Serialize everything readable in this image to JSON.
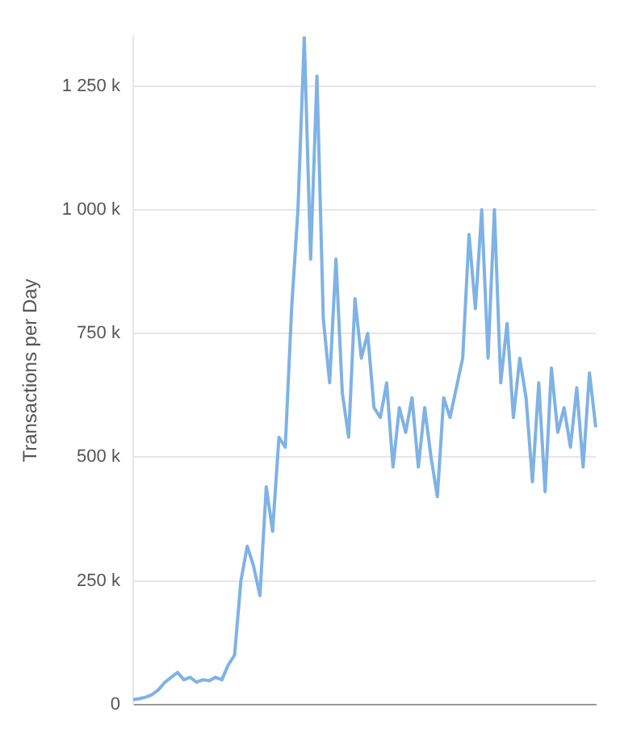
{
  "chart_data": {
    "type": "line",
    "ylabel": "Transactions per Day",
    "categories": [
      null,
      null,
      null,
      null,
      null,
      null,
      null,
      null,
      null,
      null,
      null,
      null,
      null,
      null,
      null,
      null,
      null,
      null,
      null,
      null,
      null,
      null,
      null,
      null,
      null,
      null,
      null,
      null,
      null,
      null,
      null,
      null,
      null,
      null,
      null,
      null,
      null,
      null,
      null,
      null,
      null,
      null,
      null,
      null,
      null,
      null,
      null,
      null,
      null,
      null,
      null,
      null,
      null,
      null,
      null,
      null,
      null,
      null,
      null,
      null,
      null,
      null,
      null,
      null,
      null,
      null,
      null,
      null,
      null,
      null,
      null,
      null,
      null,
      null
    ],
    "series": [
      {
        "color": "#7fb2e5",
        "values": [
          10000,
          12000,
          15000,
          20000,
          30000,
          45000,
          55000,
          65000,
          50000,
          55000,
          45000,
          50000,
          48000,
          55000,
          50000,
          80000,
          100000,
          250000,
          320000,
          280000,
          220000,
          440000,
          350000,
          540000,
          520000,
          800000,
          1000000,
          1350000,
          900000,
          1270000,
          780000,
          650000,
          900000,
          630000,
          540000,
          820000,
          700000,
          750000,
          600000,
          580000,
          650000,
          480000,
          600000,
          550000,
          620000,
          480000,
          600000,
          500000,
          420000,
          620000,
          580000,
          640000,
          700000,
          950000,
          800000,
          1000000,
          700000,
          1000000,
          650000,
          770000,
          580000,
          700000,
          620000,
          450000,
          650000,
          430000,
          680000,
          550000,
          600000,
          520000,
          640000,
          480000,
          670000,
          560000
        ]
      }
    ],
    "ylim": [
      0,
      1350000
    ],
    "yticks": [
      0,
      {
        "value": 250000,
        "label": "250 k"
      },
      {
        "value": 500000,
        "label": "500 k"
      },
      {
        "value": 750000,
        "label": "750 k"
      },
      {
        "value": 1000000,
        "label": "1 000 k"
      },
      {
        "value": 1250000,
        "label": "1 250 k"
      }
    ],
    "grid": "y",
    "legend": false,
    "marker": "none",
    "line_style": "solid",
    "tick_labels": "y"
  }
}
